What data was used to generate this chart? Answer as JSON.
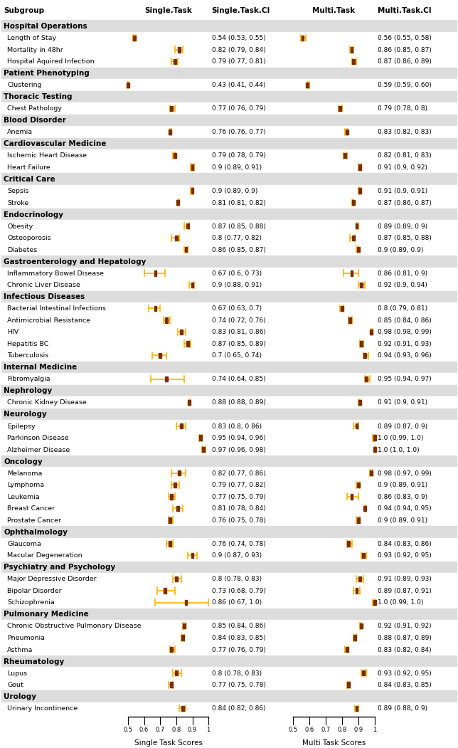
{
  "headers": [
    "Subgroup",
    "Single.Task",
    "Single.Task.CI",
    "Multi.Task",
    "Multi.Task.CI"
  ],
  "axis_range": [
    0.5,
    1.0
  ],
  "axis_ticks": [
    0.5,
    0.6,
    0.7,
    0.8,
    0.9,
    1.0
  ],
  "axis_tick_labels": [
    "0.5",
    "0.6",
    "0.7",
    "0.8",
    "0.9",
    "1"
  ],
  "xlabel_left": "Single Task Scores",
  "xlabel_right": "Multi Task Scores",
  "marker_color": "#FFB300",
  "marker_center_color": "#7B2D00",
  "header_bg": "#DCDCDC",
  "rows": [
    {
      "type": "header",
      "label": "Hospital Operations"
    },
    {
      "type": "data",
      "label": "Length of Stay",
      "st": 0.54,
      "st_lo": 0.53,
      "st_hi": 0.55,
      "st_ci": "0.54 (0.53, 0.55)",
      "mt": 0.56,
      "mt_lo": 0.55,
      "mt_hi": 0.58,
      "mt_ci": "0.56 (0.55, 0.58)"
    },
    {
      "type": "data",
      "label": "Mortality in 48hr",
      "st": 0.82,
      "st_lo": 0.79,
      "st_hi": 0.84,
      "st_ci": "0.82 (0.79, 0.84)",
      "mt": 0.86,
      "mt_lo": 0.85,
      "mt_hi": 0.87,
      "mt_ci": "0.86 (0.85, 0.87)"
    },
    {
      "type": "data",
      "label": "Hospital Aquired Infection",
      "st": 0.79,
      "st_lo": 0.77,
      "st_hi": 0.81,
      "st_ci": "0.79 (0.77, 0.81)",
      "mt": 0.87,
      "mt_lo": 0.86,
      "mt_hi": 0.89,
      "mt_ci": "0.87 (0.86, 0.89)"
    },
    {
      "type": "header",
      "label": "Patient Phenotyping"
    },
    {
      "type": "data",
      "label": "Clustering",
      "st": 0.43,
      "st_lo": 0.41,
      "st_hi": 0.44,
      "st_ci": "0.43 (0.41, 0.44)",
      "mt": 0.59,
      "mt_lo": 0.59,
      "mt_hi": 0.6,
      "mt_ci": "0.59 (0.59, 0.60)"
    },
    {
      "type": "header",
      "label": "Thoracic Testing"
    },
    {
      "type": "data",
      "label": "Chest Pathology",
      "st": 0.77,
      "st_lo": 0.76,
      "st_hi": 0.79,
      "st_ci": "0.77 (0.76, 0.79)",
      "mt": 0.79,
      "mt_lo": 0.78,
      "mt_hi": 0.8,
      "mt_ci": "0.79 (0.78, 0.8)"
    },
    {
      "type": "header",
      "label": "Blood Disorder"
    },
    {
      "type": "data",
      "label": "Anemia",
      "st": 0.76,
      "st_lo": 0.76,
      "st_hi": 0.77,
      "st_ci": "0.76 (0.76, 0.77)",
      "mt": 0.83,
      "mt_lo": 0.82,
      "mt_hi": 0.83,
      "mt_ci": "0.83 (0.82, 0.83)"
    },
    {
      "type": "header",
      "label": "Cardiovascular Medicine"
    },
    {
      "type": "data",
      "label": "Ischemic Heart Disease",
      "st": 0.79,
      "st_lo": 0.78,
      "st_hi": 0.79,
      "st_ci": "0.79 (0.78, 0.79)",
      "mt": 0.82,
      "mt_lo": 0.81,
      "mt_hi": 0.83,
      "mt_ci": "0.82 (0.81, 0.83)"
    },
    {
      "type": "data",
      "label": "Heart Failure",
      "st": 0.9,
      "st_lo": 0.89,
      "st_hi": 0.91,
      "st_ci": "0.9 (0.89, 0.91)",
      "mt": 0.91,
      "mt_lo": 0.9,
      "mt_hi": 0.92,
      "mt_ci": "0.91 (0.9, 0.92)"
    },
    {
      "type": "header",
      "label": "Critical Care"
    },
    {
      "type": "data",
      "label": "Sepsis",
      "st": 0.9,
      "st_lo": 0.89,
      "st_hi": 0.9,
      "st_ci": "0.9 (0.89, 0.9)",
      "mt": 0.91,
      "mt_lo": 0.9,
      "mt_hi": 0.91,
      "mt_ci": "0.91 (0.9, 0.91)"
    },
    {
      "type": "data",
      "label": "Stroke",
      "st": 0.81,
      "st_lo": 0.81,
      "st_hi": 0.82,
      "st_ci": "0.81 (0.81, 0.82)",
      "mt": 0.87,
      "mt_lo": 0.86,
      "mt_hi": 0.87,
      "mt_ci": "0.87 (0.86, 0.87)"
    },
    {
      "type": "header",
      "label": "Endocrinology"
    },
    {
      "type": "data",
      "label": "Obesity",
      "st": 0.87,
      "st_lo": 0.85,
      "st_hi": 0.88,
      "st_ci": "0.87 (0.85, 0.88)",
      "mt": 0.89,
      "mt_lo": 0.89,
      "mt_hi": 0.9,
      "mt_ci": "0.89 (0.89, 0.9)"
    },
    {
      "type": "data",
      "label": "Osteoporosis",
      "st": 0.8,
      "st_lo": 0.77,
      "st_hi": 0.82,
      "st_ci": "0.8 (0.77, 0.82)",
      "mt": 0.87,
      "mt_lo": 0.85,
      "mt_hi": 0.88,
      "mt_ci": "0.87 (0.85, 0.88)"
    },
    {
      "type": "data",
      "label": "Diabetes",
      "st": 0.86,
      "st_lo": 0.85,
      "st_hi": 0.87,
      "st_ci": "0.86 (0.85, 0.87)",
      "mt": 0.9,
      "mt_lo": 0.89,
      "mt_hi": 0.9,
      "mt_ci": "0.9 (0.89, 0.9)"
    },
    {
      "type": "header",
      "label": "Gastroenterology and Hepatology"
    },
    {
      "type": "data",
      "label": "Inflammatory Bowel Disease",
      "st": 0.67,
      "st_lo": 0.6,
      "st_hi": 0.73,
      "st_ci": "0.67 (0.6, 0.73)",
      "mt": 0.86,
      "mt_lo": 0.81,
      "mt_hi": 0.9,
      "mt_ci": "0.86 (0.81, 0.9)"
    },
    {
      "type": "data",
      "label": "Chronic Liver Disease",
      "st": 0.9,
      "st_lo": 0.88,
      "st_hi": 0.91,
      "st_ci": "0.9 (0.88, 0.91)",
      "mt": 0.92,
      "mt_lo": 0.9,
      "mt_hi": 0.94,
      "mt_ci": "0.92 (0.9, 0.94)"
    },
    {
      "type": "header",
      "label": "Infectious Diseases"
    },
    {
      "type": "data",
      "label": "Bacterial Intestinal Infections",
      "st": 0.67,
      "st_lo": 0.63,
      "st_hi": 0.7,
      "st_ci": "0.67 (0.63, 0.7)",
      "mt": 0.8,
      "mt_lo": 0.79,
      "mt_hi": 0.81,
      "mt_ci": "0.8 (0.79, 0.81)"
    },
    {
      "type": "data",
      "label": "Antimicrobial Resistance",
      "st": 0.74,
      "st_lo": 0.72,
      "st_hi": 0.76,
      "st_ci": "0.74 (0.72, 0.76)",
      "mt": 0.85,
      "mt_lo": 0.84,
      "mt_hi": 0.86,
      "mt_ci": "0.85 (0.84, 0.86)"
    },
    {
      "type": "data",
      "label": "HIV",
      "st": 0.83,
      "st_lo": 0.81,
      "st_hi": 0.86,
      "st_ci": "0.83 (0.81, 0.86)",
      "mt": 0.98,
      "mt_lo": 0.98,
      "mt_hi": 0.99,
      "mt_ci": "0.98 (0.98, 0.99)"
    },
    {
      "type": "data",
      "label": "Hepatitis BC",
      "st": 0.87,
      "st_lo": 0.85,
      "st_hi": 0.89,
      "st_ci": "0.87 (0.85, 0.89)",
      "mt": 0.92,
      "mt_lo": 0.91,
      "mt_hi": 0.93,
      "mt_ci": "0.92 (0.91, 0.93)"
    },
    {
      "type": "data",
      "label": "Tuberculosis",
      "st": 0.7,
      "st_lo": 0.65,
      "st_hi": 0.74,
      "st_ci": "0.7 (0.65, 0.74)",
      "mt": 0.94,
      "mt_lo": 0.93,
      "mt_hi": 0.96,
      "mt_ci": "0.94 (0.93, 0.96)"
    },
    {
      "type": "header",
      "label": "Internal Medicine"
    },
    {
      "type": "data",
      "label": "Fibromyalgia",
      "st": 0.74,
      "st_lo": 0.64,
      "st_hi": 0.85,
      "st_ci": "0.74 (0.64, 0.85)",
      "mt": 0.95,
      "mt_lo": 0.94,
      "mt_hi": 0.97,
      "mt_ci": "0.95 (0.94, 0.97)"
    },
    {
      "type": "header",
      "label": "Nephrology"
    },
    {
      "type": "data",
      "label": "Chronic Kidney Disease",
      "st": 0.88,
      "st_lo": 0.88,
      "st_hi": 0.89,
      "st_ci": "0.88 (0.88, 0.89)",
      "mt": 0.91,
      "mt_lo": 0.9,
      "mt_hi": 0.91,
      "mt_ci": "0.91 (0.9, 0.91)"
    },
    {
      "type": "header",
      "label": "Neurology"
    },
    {
      "type": "data",
      "label": "Epilepsy",
      "st": 0.83,
      "st_lo": 0.8,
      "st_hi": 0.86,
      "st_ci": "0.83 (0.8, 0.86)",
      "mt": 0.89,
      "mt_lo": 0.87,
      "mt_hi": 0.9,
      "mt_ci": "0.89 (0.87, 0.9)"
    },
    {
      "type": "data",
      "label": "Parkinson Disease",
      "st": 0.95,
      "st_lo": 0.94,
      "st_hi": 0.96,
      "st_ci": "0.95 (0.94, 0.96)",
      "mt": 1.0,
      "mt_lo": 0.99,
      "mt_hi": 1.0,
      "mt_ci": "1.0 (0.99, 1.0)"
    },
    {
      "type": "data",
      "label": "Alzheimer Disease",
      "st": 0.97,
      "st_lo": 0.96,
      "st_hi": 0.98,
      "st_ci": "0.97 (0.96, 0.98)",
      "mt": 1.0,
      "mt_lo": 1.0,
      "mt_hi": 1.0,
      "mt_ci": "1.0 (1.0, 1.0)"
    },
    {
      "type": "header",
      "label": "Oncology"
    },
    {
      "type": "data",
      "label": "Melanoma",
      "st": 0.82,
      "st_lo": 0.77,
      "st_hi": 0.86,
      "st_ci": "0.82 (0.77, 0.86)",
      "mt": 0.98,
      "mt_lo": 0.97,
      "mt_hi": 0.99,
      "mt_ci": "0.98 (0.97, 0.99)"
    },
    {
      "type": "data",
      "label": "Lymphoma",
      "st": 0.79,
      "st_lo": 0.77,
      "st_hi": 0.82,
      "st_ci": "0.79 (0.77, 0.82)",
      "mt": 0.9,
      "mt_lo": 0.89,
      "mt_hi": 0.91,
      "mt_ci": "0.9 (0.89, 0.91)"
    },
    {
      "type": "data",
      "label": "Leukemia",
      "st": 0.77,
      "st_lo": 0.75,
      "st_hi": 0.79,
      "st_ci": "0.77 (0.75, 0.79)",
      "mt": 0.86,
      "mt_lo": 0.83,
      "mt_hi": 0.9,
      "mt_ci": "0.86 (0.83, 0.9)"
    },
    {
      "type": "data",
      "label": "Breast Cancer",
      "st": 0.81,
      "st_lo": 0.78,
      "st_hi": 0.84,
      "st_ci": "0.81 (0.78, 0.84)",
      "mt": 0.94,
      "mt_lo": 0.94,
      "mt_hi": 0.95,
      "mt_ci": "0.94 (0.94, 0.95)"
    },
    {
      "type": "data",
      "label": "Prostate Cancer",
      "st": 0.76,
      "st_lo": 0.75,
      "st_hi": 0.78,
      "st_ci": "0.76 (0.75, 0.78)",
      "mt": 0.9,
      "mt_lo": 0.89,
      "mt_hi": 0.91,
      "mt_ci": "0.9 (0.89, 0.91)"
    },
    {
      "type": "header",
      "label": "Ophthalmology"
    },
    {
      "type": "data",
      "label": "Glaucoma",
      "st": 0.76,
      "st_lo": 0.74,
      "st_hi": 0.78,
      "st_ci": "0.76 (0.74, 0.78)",
      "mt": 0.84,
      "mt_lo": 0.83,
      "mt_hi": 0.86,
      "mt_ci": "0.84 (0.83, 0.86)"
    },
    {
      "type": "data",
      "label": "Macular Degeneration",
      "st": 0.9,
      "st_lo": 0.87,
      "st_hi": 0.93,
      "st_ci": "0.9 (0.87, 0.93)",
      "mt": 0.93,
      "mt_lo": 0.92,
      "mt_hi": 0.95,
      "mt_ci": "0.93 (0.92, 0.95)"
    },
    {
      "type": "header",
      "label": "Psychiatry and Psychology"
    },
    {
      "type": "data",
      "label": "Major Depressive Disorder",
      "st": 0.8,
      "st_lo": 0.78,
      "st_hi": 0.83,
      "st_ci": "0.8 (0.78, 0.83)",
      "mt": 0.91,
      "mt_lo": 0.89,
      "mt_hi": 0.93,
      "mt_ci": "0.91 (0.89, 0.93)"
    },
    {
      "type": "data",
      "label": "Bipolar Disorder",
      "st": 0.73,
      "st_lo": 0.68,
      "st_hi": 0.79,
      "st_ci": "0.73 (0.68, 0.79)",
      "mt": 0.89,
      "mt_lo": 0.87,
      "mt_hi": 0.91,
      "mt_ci": "0.89 (0.87, 0.91)"
    },
    {
      "type": "data",
      "label": "Schizophrenia",
      "st": 0.86,
      "st_lo": 0.67,
      "st_hi": 1.0,
      "st_ci": "0.86 (0.67, 1.0)",
      "mt": 1.0,
      "mt_lo": 0.99,
      "mt_hi": 1.0,
      "mt_ci": "1.0 (0.99, 1.0)"
    },
    {
      "type": "header",
      "label": "Pulmonary Medicine"
    },
    {
      "type": "data",
      "label": "Chronic Obstructive Pulmonary Disease",
      "st": 0.85,
      "st_lo": 0.84,
      "st_hi": 0.86,
      "st_ci": "0.85 (0.84, 0.86)",
      "mt": 0.92,
      "mt_lo": 0.91,
      "mt_hi": 0.92,
      "mt_ci": "0.92 (0.91, 0.92)"
    },
    {
      "type": "data",
      "label": "Pneumonia",
      "st": 0.84,
      "st_lo": 0.83,
      "st_hi": 0.85,
      "st_ci": "0.84 (0.83, 0.85)",
      "mt": 0.88,
      "mt_lo": 0.87,
      "mt_hi": 0.89,
      "mt_ci": "0.88 (0.87, 0.89)"
    },
    {
      "type": "data",
      "label": "Asthma",
      "st": 0.77,
      "st_lo": 0.76,
      "st_hi": 0.79,
      "st_ci": "0.77 (0.76, 0.79)",
      "mt": 0.83,
      "mt_lo": 0.82,
      "mt_hi": 0.84,
      "mt_ci": "0.83 (0.82, 0.84)"
    },
    {
      "type": "header",
      "label": "Rheumatology"
    },
    {
      "type": "data",
      "label": "Lupus",
      "st": 0.8,
      "st_lo": 0.78,
      "st_hi": 0.83,
      "st_ci": "0.8 (0.78, 0.83)",
      "mt": 0.93,
      "mt_lo": 0.92,
      "mt_hi": 0.95,
      "mt_ci": "0.93 (0.92, 0.95)"
    },
    {
      "type": "data",
      "label": "Gout",
      "st": 0.77,
      "st_lo": 0.75,
      "st_hi": 0.78,
      "st_ci": "0.77 (0.75, 0.78)",
      "mt": 0.84,
      "mt_lo": 0.83,
      "mt_hi": 0.85,
      "mt_ci": "0.84 (0.83, 0.85)"
    },
    {
      "type": "header",
      "label": "Urology"
    },
    {
      "type": "data",
      "label": "Urinary Incontinence",
      "st": 0.84,
      "st_lo": 0.82,
      "st_hi": 0.86,
      "st_ci": "0.84 (0.82, 0.86)",
      "mt": 0.89,
      "mt_lo": 0.88,
      "mt_hi": 0.9,
      "mt_ci": "0.89 (0.88, 0.9)"
    }
  ]
}
